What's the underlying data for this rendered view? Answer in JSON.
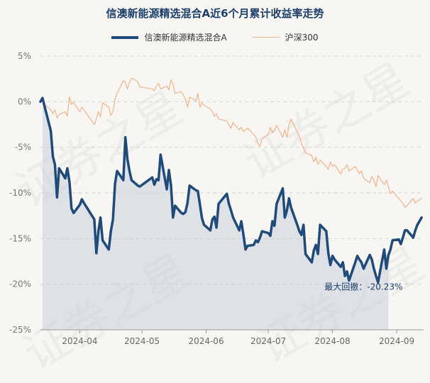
{
  "chart_data": {
    "type": "line",
    "title": "信澳新能源精选混合A近6个月累计收益率走势",
    "xlabel": "",
    "ylabel": "",
    "ylim": [
      -25,
      5
    ],
    "yticks": [
      "5%",
      "0%",
      "-5%",
      "-10%",
      "-15%",
      "-20%",
      "-25%"
    ],
    "ytick_values": [
      5,
      0,
      -5,
      -10,
      -15,
      -20,
      -25
    ],
    "xlim": [
      "2024-03-13",
      "2024-09-14"
    ],
    "xticks": [
      {
        "date": "2024-04-01",
        "label": "2024-04"
      },
      {
        "date": "2024-05-01",
        "label": "2024-05"
      },
      {
        "date": "2024-06-01",
        "label": "2024-06"
      },
      {
        "date": "2024-07-01",
        "label": "2024-07"
      },
      {
        "date": "2024-08-01",
        "label": "2024-08"
      },
      {
        "date": "2024-09-01",
        "label": "2024-09"
      }
    ],
    "grid": true,
    "legend_position": "top-center",
    "series": [
      {
        "name": "信澳新能源精选混合A",
        "color": "#1f4a7a",
        "points": [
          [
            "2024-03-13",
            0
          ],
          [
            "2024-03-14",
            0.4
          ],
          [
            "2024-03-15",
            -0.5
          ],
          [
            "2024-03-18",
            -3.2
          ],
          [
            "2024-03-19",
            -6
          ],
          [
            "2024-03-20",
            -6.9
          ],
          [
            "2024-03-21",
            -10.5
          ],
          [
            "2024-03-22",
            -7.3
          ],
          [
            "2024-03-25",
            -8.4
          ],
          [
            "2024-03-26",
            -7.3
          ],
          [
            "2024-03-27",
            -8.8
          ],
          [
            "2024-03-28",
            -11.7
          ],
          [
            "2024-03-29",
            -12.2
          ],
          [
            "2024-04-01",
            -11.3
          ],
          [
            "2024-04-02",
            -10.7
          ],
          [
            "2024-04-03",
            -11.1
          ],
          [
            "2024-04-08",
            -12.9
          ],
          [
            "2024-04-09",
            -16.6
          ],
          [
            "2024-04-10",
            -14.2
          ],
          [
            "2024-04-11",
            -12.7
          ],
          [
            "2024-04-12",
            -15.2
          ],
          [
            "2024-04-15",
            -16.2
          ],
          [
            "2024-04-16",
            -14.2
          ],
          [
            "2024-04-17",
            -12.9
          ],
          [
            "2024-04-18",
            -9
          ],
          [
            "2024-04-19",
            -7.6
          ],
          [
            "2024-04-22",
            -8.6
          ],
          [
            "2024-04-23",
            -3.9
          ],
          [
            "2024-04-24",
            -6.3
          ],
          [
            "2024-04-25",
            -7.6
          ],
          [
            "2024-04-26",
            -8.6
          ],
          [
            "2024-04-29",
            -9.2
          ],
          [
            "2024-04-30",
            -9.3
          ],
          [
            "2024-05-06",
            -8.3
          ],
          [
            "2024-05-07",
            -9.1
          ],
          [
            "2024-05-08",
            -8.5
          ],
          [
            "2024-05-09",
            -8.6
          ],
          [
            "2024-05-10",
            -5.8
          ],
          [
            "2024-05-13",
            -9.6
          ],
          [
            "2024-05-14",
            -7.5
          ],
          [
            "2024-05-15",
            -9.1
          ],
          [
            "2024-05-16",
            -12.7
          ],
          [
            "2024-05-17",
            -11.4
          ],
          [
            "2024-05-20",
            -12.2
          ],
          [
            "2024-05-21",
            -12.3
          ],
          [
            "2024-05-22",
            -12.1
          ],
          [
            "2024-05-23",
            -11.1
          ],
          [
            "2024-05-24",
            -9.2
          ],
          [
            "2024-05-27",
            -9.7
          ],
          [
            "2024-05-28",
            -9.8
          ],
          [
            "2024-05-29",
            -11.3
          ],
          [
            "2024-05-30",
            -12.8
          ],
          [
            "2024-05-31",
            -13.5
          ],
          [
            "2024-06-03",
            -14.1
          ],
          [
            "2024-06-04",
            -12.9
          ],
          [
            "2024-06-05",
            -12.6
          ],
          [
            "2024-06-06",
            -13.8
          ],
          [
            "2024-06-07",
            -11.2
          ],
          [
            "2024-06-11",
            -10.1
          ],
          [
            "2024-06-12",
            -11.2
          ],
          [
            "2024-06-13",
            -11.9
          ],
          [
            "2024-06-14",
            -12.7
          ],
          [
            "2024-06-17",
            -14.1
          ],
          [
            "2024-06-18",
            -13.1
          ],
          [
            "2024-06-19",
            -14.6
          ],
          [
            "2024-06-20",
            -16.2
          ],
          [
            "2024-06-21",
            -15.8
          ],
          [
            "2024-06-24",
            -15.7
          ],
          [
            "2024-06-25",
            -15.2
          ],
          [
            "2024-06-26",
            -15.4
          ],
          [
            "2024-06-27",
            -14.9
          ],
          [
            "2024-06-28",
            -14.2
          ],
          [
            "2024-07-01",
            -14.4
          ],
          [
            "2024-07-02",
            -14.7
          ],
          [
            "2024-07-03",
            -13.1
          ],
          [
            "2024-07-04",
            -13.6
          ],
          [
            "2024-07-05",
            -11.2
          ],
          [
            "2024-07-08",
            -9.5
          ],
          [
            "2024-07-09",
            -12.7
          ],
          [
            "2024-07-10",
            -11.9
          ],
          [
            "2024-07-11",
            -10.6
          ],
          [
            "2024-07-12",
            -11.6
          ],
          [
            "2024-07-15",
            -13.5
          ],
          [
            "2024-07-16",
            -14.2
          ],
          [
            "2024-07-17",
            -14.6
          ],
          [
            "2024-07-18",
            -13.5
          ],
          [
            "2024-07-19",
            -16.7
          ],
          [
            "2024-07-22",
            -17.6
          ],
          [
            "2024-07-23",
            -16.3
          ],
          [
            "2024-07-24",
            -15.7
          ],
          [
            "2024-07-25",
            -16.7
          ],
          [
            "2024-07-26",
            -13.5
          ],
          [
            "2024-07-29",
            -14.2
          ],
          [
            "2024-07-30",
            -16.6
          ],
          [
            "2024-07-31",
            -17.9
          ],
          [
            "2024-08-01",
            -16.9
          ],
          [
            "2024-08-02",
            -17.3
          ],
          [
            "2024-08-05",
            -18.1
          ],
          [
            "2024-08-06",
            -17.6
          ],
          [
            "2024-08-07",
            -19.1
          ],
          [
            "2024-08-08",
            -18.6
          ],
          [
            "2024-08-09",
            -19.6
          ],
          [
            "2024-08-12",
            -17.6
          ],
          [
            "2024-08-13",
            -16.9
          ],
          [
            "2024-08-14",
            -17.3
          ],
          [
            "2024-08-15",
            -17.6
          ],
          [
            "2024-08-16",
            -18.3
          ],
          [
            "2024-08-19",
            -16.8
          ],
          [
            "2024-08-20",
            -17.3
          ],
          [
            "2024-08-21",
            -18.3
          ],
          [
            "2024-08-22",
            -19.1
          ],
          [
            "2024-08-23",
            -19.8
          ],
          [
            "2024-08-26",
            -16.2
          ],
          [
            "2024-08-27",
            -18.3
          ],
          [
            "2024-08-28",
            -16.8
          ],
          [
            "2024-08-29",
            -16.2
          ],
          [
            "2024-08-30",
            -15.2
          ],
          [
            "2024-09-02",
            -15.1
          ],
          [
            "2024-09-03",
            -15.6
          ],
          [
            "2024-09-04",
            -14.9
          ],
          [
            "2024-09-05",
            -14.1
          ],
          [
            "2024-09-06",
            -14.1
          ],
          [
            "2024-09-09",
            -14.9
          ],
          [
            "2024-09-10",
            -14.1
          ],
          [
            "2024-09-11",
            -13.5
          ],
          [
            "2024-09-13",
            -12.7
          ]
        ]
      },
      {
        "name": "沪深300",
        "color": "#f0b48a",
        "points": [
          [
            "2024-03-13",
            0
          ],
          [
            "2024-03-14",
            0.2
          ],
          [
            "2024-03-15",
            -0.3
          ],
          [
            "2024-03-18",
            -0.9
          ],
          [
            "2024-03-19",
            -1.3
          ],
          [
            "2024-03-20",
            -0.9
          ],
          [
            "2024-03-21",
            -1.8
          ],
          [
            "2024-03-22",
            -1.4
          ],
          [
            "2024-03-25",
            -1.1
          ],
          [
            "2024-03-26",
            -1.6
          ],
          [
            "2024-03-27",
            0.5
          ],
          [
            "2024-03-28",
            -0.3
          ],
          [
            "2024-03-29",
            -0.1
          ],
          [
            "2024-04-01",
            -1.1
          ],
          [
            "2024-04-02",
            -0.6
          ],
          [
            "2024-04-03",
            -0.9
          ],
          [
            "2024-04-08",
            -2.5
          ],
          [
            "2024-04-09",
            -1.9
          ],
          [
            "2024-04-10",
            -1.1
          ],
          [
            "2024-04-11",
            -1.7
          ],
          [
            "2024-04-12",
            -0.1
          ],
          [
            "2024-04-15",
            -0.6
          ],
          [
            "2024-04-16",
            -1.5
          ],
          [
            "2024-04-17",
            -1.1
          ],
          [
            "2024-04-18",
            0.3
          ],
          [
            "2024-04-19",
            0.9
          ],
          [
            "2024-04-22",
            2.3
          ],
          [
            "2024-04-23",
            2.1
          ],
          [
            "2024-04-24",
            1.4
          ],
          [
            "2024-04-25",
            2.1
          ],
          [
            "2024-04-26",
            2.6
          ],
          [
            "2024-04-29",
            2.2
          ],
          [
            "2024-04-30",
            1.6
          ],
          [
            "2024-05-06",
            1.4
          ],
          [
            "2024-05-07",
            1.2
          ],
          [
            "2024-05-08",
            1.7
          ],
          [
            "2024-05-09",
            2.0
          ],
          [
            "2024-05-10",
            1.4
          ],
          [
            "2024-05-13",
            1.7
          ],
          [
            "2024-05-14",
            1.3
          ],
          [
            "2024-05-15",
            2.4
          ],
          [
            "2024-05-16",
            1.9
          ],
          [
            "2024-05-17",
            0.9
          ],
          [
            "2024-05-20",
            1.1
          ],
          [
            "2024-05-21",
            0.7
          ],
          [
            "2024-05-22",
            0.3
          ],
          [
            "2024-05-23",
            -0.6
          ],
          [
            "2024-05-24",
            0.5
          ],
          [
            "2024-05-27",
            0.1
          ],
          [
            "2024-05-28",
            0.9
          ],
          [
            "2024-05-29",
            -0.6
          ],
          [
            "2024-05-30",
            -0.1
          ],
          [
            "2024-05-31",
            -0.4
          ],
          [
            "2024-06-03",
            -0.8
          ],
          [
            "2024-06-04",
            -1.1
          ],
          [
            "2024-06-05",
            -1.6
          ],
          [
            "2024-06-06",
            -1.3
          ],
          [
            "2024-06-07",
            -1.9
          ],
          [
            "2024-06-11",
            -2.1
          ],
          [
            "2024-06-12",
            -2.6
          ],
          [
            "2024-06-13",
            -2.9
          ],
          [
            "2024-06-14",
            -2.3
          ],
          [
            "2024-06-17",
            -3.1
          ],
          [
            "2024-06-18",
            -2.8
          ],
          [
            "2024-06-19",
            -3.3
          ],
          [
            "2024-06-20",
            -3.1
          ],
          [
            "2024-06-21",
            -2.9
          ],
          [
            "2024-06-24",
            -3.6
          ],
          [
            "2024-06-25",
            -3.9
          ],
          [
            "2024-06-26",
            -4.6
          ],
          [
            "2024-06-27",
            -4.9
          ],
          [
            "2024-06-28",
            -4.1
          ],
          [
            "2024-07-01",
            -3.6
          ],
          [
            "2024-07-02",
            -2.8
          ],
          [
            "2024-07-03",
            -3.4
          ],
          [
            "2024-07-04",
            -3.1
          ],
          [
            "2024-07-05",
            -2.6
          ],
          [
            "2024-07-08",
            -3.9
          ],
          [
            "2024-07-09",
            -3.1
          ],
          [
            "2024-07-10",
            -3.9
          ],
          [
            "2024-07-11",
            -2.6
          ],
          [
            "2024-07-12",
            -1.9
          ],
          [
            "2024-07-15",
            -3.3
          ],
          [
            "2024-07-16",
            -3.8
          ],
          [
            "2024-07-17",
            -4.6
          ],
          [
            "2024-07-18",
            -5.1
          ],
          [
            "2024-07-19",
            -5.6
          ],
          [
            "2024-07-22",
            -5.9
          ],
          [
            "2024-07-23",
            -6.6
          ],
          [
            "2024-07-24",
            -6.1
          ],
          [
            "2024-07-25",
            -6.9
          ],
          [
            "2024-07-26",
            -6.4
          ],
          [
            "2024-07-29",
            -7.1
          ],
          [
            "2024-07-30",
            -7.4
          ],
          [
            "2024-07-31",
            -6.6
          ],
          [
            "2024-08-01",
            -7.1
          ],
          [
            "2024-08-02",
            -6.9
          ],
          [
            "2024-08-05",
            -7.9
          ],
          [
            "2024-08-06",
            -7.4
          ],
          [
            "2024-08-07",
            -7.3
          ],
          [
            "2024-08-08",
            -6.9
          ],
          [
            "2024-08-09",
            -7.6
          ],
          [
            "2024-08-12",
            -7.1
          ],
          [
            "2024-08-13",
            -7.5
          ],
          [
            "2024-08-14",
            -7.9
          ],
          [
            "2024-08-15",
            -7.6
          ],
          [
            "2024-08-16",
            -8.4
          ],
          [
            "2024-08-19",
            -8.9
          ],
          [
            "2024-08-20",
            -8.2
          ],
          [
            "2024-08-21",
            -8.6
          ],
          [
            "2024-08-22",
            -9.3
          ],
          [
            "2024-08-23",
            -8.1
          ],
          [
            "2024-08-26",
            -9.1
          ],
          [
            "2024-08-27",
            -8.6
          ],
          [
            "2024-08-28",
            -9.3
          ],
          [
            "2024-08-29",
            -10.1
          ],
          [
            "2024-08-30",
            -9.8
          ],
          [
            "2024-09-02",
            -10.6
          ],
          [
            "2024-09-03",
            -10.9
          ],
          [
            "2024-09-04",
            -11.1
          ],
          [
            "2024-09-05",
            -11.6
          ],
          [
            "2024-09-06",
            -11.4
          ],
          [
            "2024-09-09",
            -10.6
          ],
          [
            "2024-09-10",
            -11.1
          ],
          [
            "2024-09-11",
            -10.9
          ],
          [
            "2024-09-13",
            -10.6
          ]
        ]
      }
    ],
    "annotations": [
      {
        "text": "最大回撤：-20.23%",
        "x": "2024-08-16",
        "y": -20.6,
        "color": "#1c3f6b"
      }
    ],
    "drawdown_shading": {
      "from": "2024-03-14",
      "to": "2024-08-28",
      "color": "#c9d2dc"
    }
  },
  "watermark": "证券之星"
}
